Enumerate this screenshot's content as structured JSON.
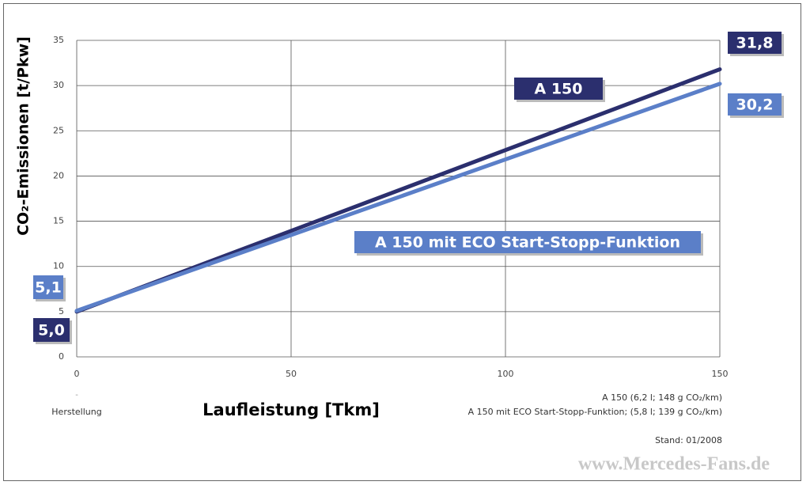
{
  "chart_data": {
    "type": "line",
    "y_label": "CO₂-Emissionen [t/Pkw]",
    "x_label": "Laufleistung [Tkm]",
    "x_start_note": "Herstellung",
    "x": [
      0,
      150
    ],
    "series": [
      {
        "name": "A 150",
        "color": "#2b2f6e",
        "values": [
          5.0,
          31.8
        ],
        "value_labels": [
          "5,0",
          "31,8"
        ]
      },
      {
        "name": "A 150 mit ECO Start-Stopp-Funktion",
        "color": "#5b7fc8",
        "values": [
          5.1,
          30.2
        ],
        "value_labels": [
          "5,1",
          "30,2"
        ]
      }
    ],
    "xlim": [
      0,
      150
    ],
    "xticks": [
      0,
      50,
      100,
      150
    ],
    "ylim": [
      0,
      35
    ],
    "yticks": [
      0,
      5,
      10,
      15,
      20,
      25,
      30,
      35
    ],
    "grid": true,
    "notes": [
      "A 150 (6,2 l; 148 g CO₂/km)",
      "A 150 mit ECO Start-Stopp-Funktion; (5,8 l; 139 g CO₂/km)"
    ],
    "stand": "Stand: 01/2008",
    "watermark": "www.Mercedes-Fans.de"
  }
}
